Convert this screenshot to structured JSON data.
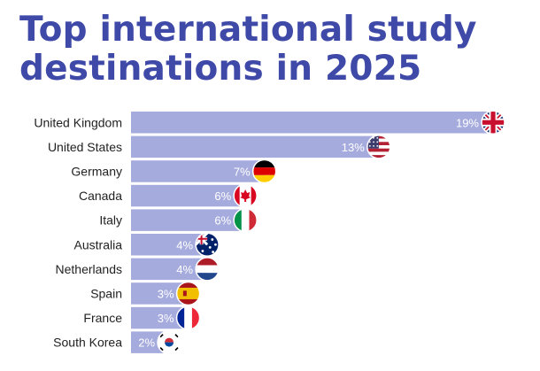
{
  "title_lines": [
    "Top international study",
    "destinations in 2025"
  ],
  "colors": {
    "title": "#3f4aa8",
    "bar": "#a6abde",
    "text": "#222222",
    "value_text": "#ffffff"
  },
  "chart_data": {
    "type": "bar",
    "orientation": "horizontal",
    "title": "Top international study destinations in 2025",
    "categories": [
      "United Kingdom",
      "United States",
      "Germany",
      "Canada",
      "Italy",
      "Australia",
      "Netherlands",
      "Spain",
      "France",
      "South Korea"
    ],
    "values": [
      19,
      13,
      7,
      6,
      6,
      4,
      4,
      3,
      3,
      2
    ],
    "value_labels": [
      "19%",
      "13%",
      "7%",
      "6%",
      "6%",
      "4%",
      "4%",
      "3%",
      "3%",
      "2%"
    ],
    "flag_icons": [
      "uk-flag-icon",
      "us-flag-icon",
      "germany-flag-icon",
      "canada-flag-icon",
      "italy-flag-icon",
      "australia-flag-icon",
      "netherlands-flag-icon",
      "spain-flag-icon",
      "france-flag-icon",
      "south-korea-flag-icon"
    ],
    "xlim": [
      0,
      19
    ],
    "grid": false,
    "legend": false
  }
}
